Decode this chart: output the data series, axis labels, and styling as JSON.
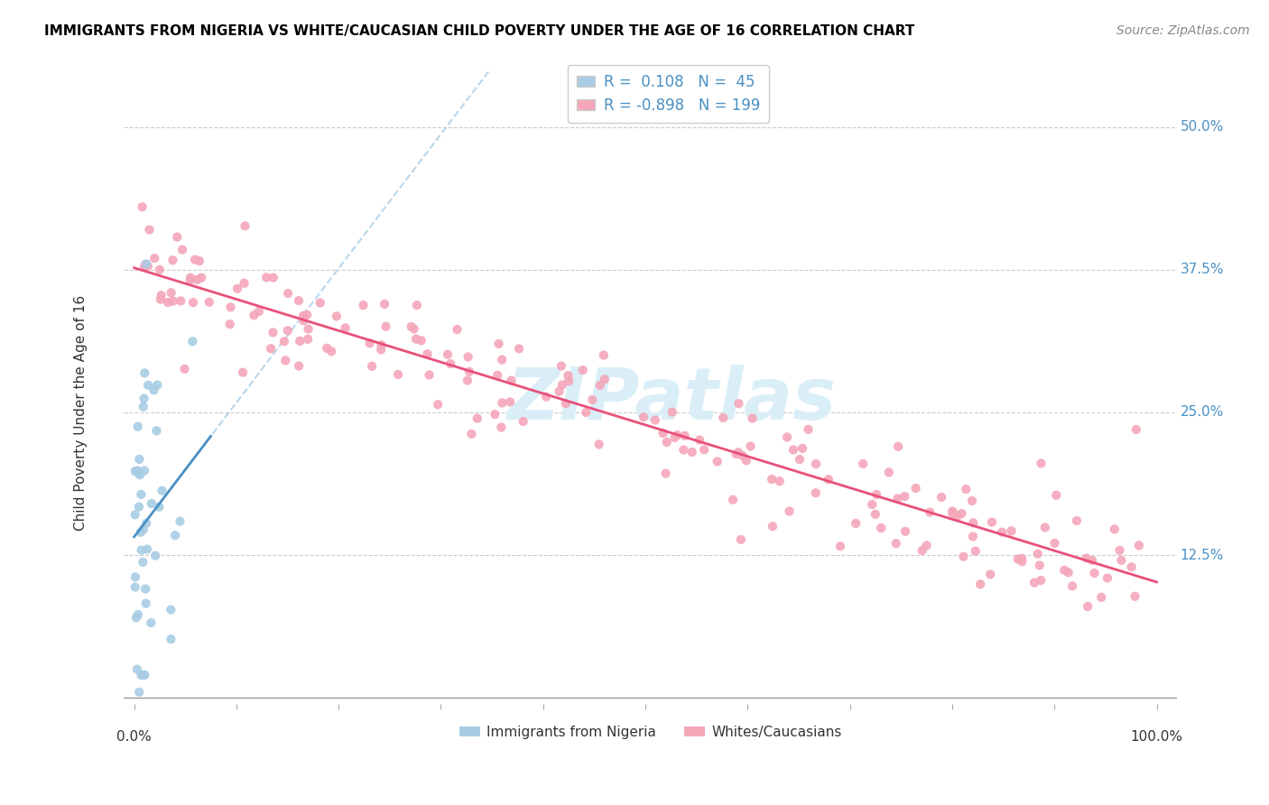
{
  "title": "IMMIGRANTS FROM NIGERIA VS WHITE/CAUCASIAN CHILD POVERTY UNDER THE AGE OF 16 CORRELATION CHART",
  "source": "Source: ZipAtlas.com",
  "ylabel": "Child Poverty Under the Age of 16",
  "legend_label_blue": "Immigrants from Nigeria",
  "legend_label_pink": "Whites/Caucasians",
  "r_blue": 0.108,
  "n_blue": 45,
  "r_pink": -0.898,
  "n_pink": 199,
  "blue_color": "#a8cce4",
  "pink_color": "#f4a7b9",
  "blue_line_color": "#4a90c4",
  "pink_line_color": "#e8507a",
  "dashed_line_color": "#a8cce4",
  "watermark_color": "#daeef8",
  "ytick_vals": [
    0.125,
    0.25,
    0.375,
    0.5
  ],
  "ytick_labels": [
    "12.5%",
    "25.0%",
    "37.5%",
    "50.0%"
  ],
  "xmin": 0.0,
  "xmax": 1.0,
  "ymin": 0.0,
  "ymax": 0.55
}
